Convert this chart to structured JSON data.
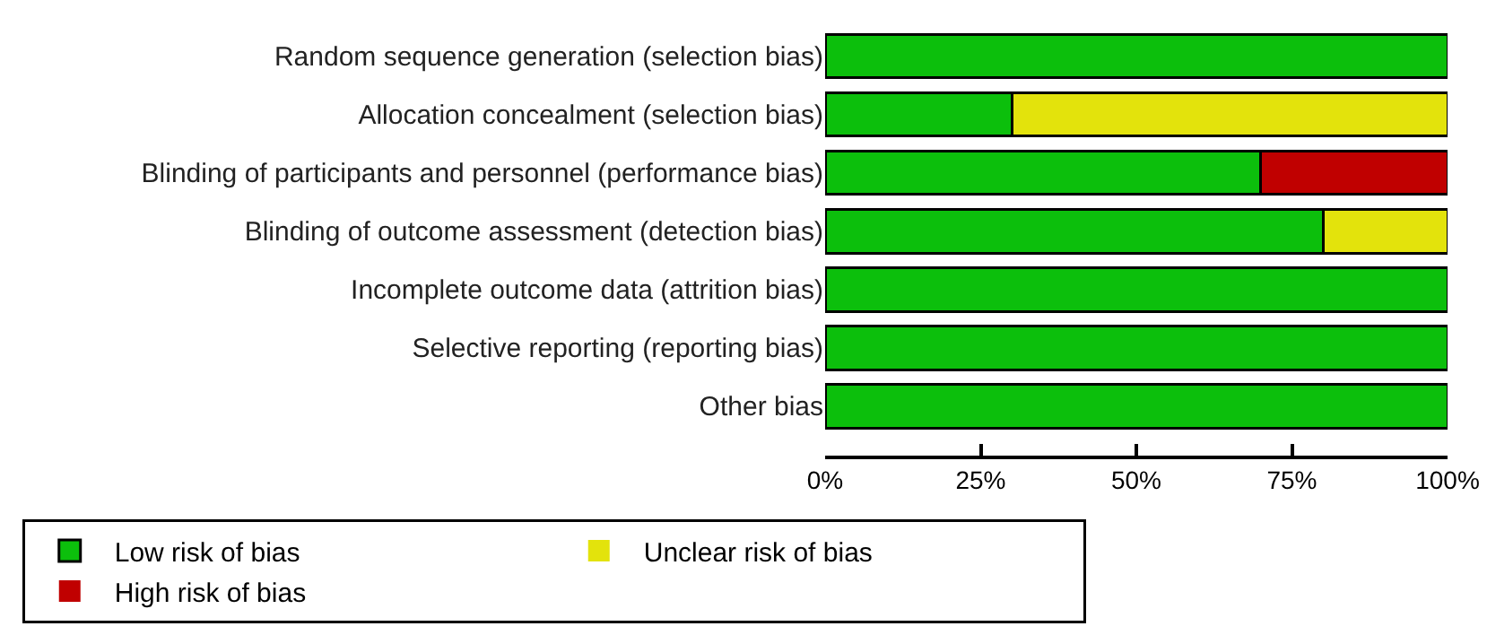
{
  "chart_data": {
    "type": "bar",
    "orientation": "horizontal",
    "stacked": true,
    "categories": [
      "Random sequence generation (selection bias)",
      "Allocation concealment (selection bias)",
      "Blinding of participants and personnel (performance bias)",
      "Blinding of outcome assessment (detection bias)",
      "Incomplete outcome data (attrition bias)",
      "Selective reporting (reporting bias)",
      "Other bias"
    ],
    "series": [
      {
        "name": "Low risk of bias",
        "color": "#0cbf0c",
        "values": [
          100,
          30,
          70,
          80,
          100,
          100,
          100
        ]
      },
      {
        "name": "Unclear risk of bias",
        "color": "#e3e30c",
        "values": [
          0,
          70,
          0,
          20,
          0,
          0,
          0
        ]
      },
      {
        "name": "High risk of bias",
        "color": "#c00000",
        "values": [
          0,
          0,
          30,
          0,
          0,
          0,
          0
        ]
      }
    ],
    "xlim": [
      0,
      100
    ],
    "xticks": [
      {
        "value": 0,
        "label": "0%"
      },
      {
        "value": 25,
        "label": "25%"
      },
      {
        "value": 50,
        "label": "50%"
      },
      {
        "value": 75,
        "label": "75%"
      },
      {
        "value": 100,
        "label": "100%"
      }
    ],
    "grid": false,
    "legend": "bottom"
  }
}
